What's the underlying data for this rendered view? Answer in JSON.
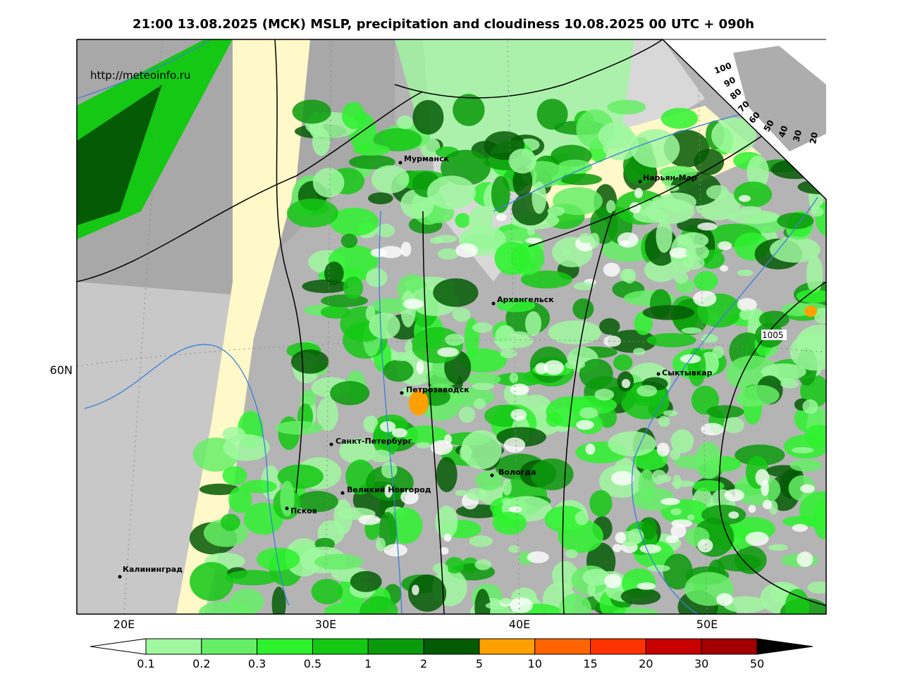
{
  "header": {
    "title": "21:00 13.08.2025 (МСК) MSLP, precipitation and cloudiness 10.08.2025 00 UTC + 090h"
  },
  "map": {
    "url": "http://meteoinfo.ru",
    "cities": [
      "Мурманск",
      "Нарьян-Мар",
      "Архангельск",
      "Сыктывкар",
      "Петрозаводск",
      "Санкт-Петербург",
      "Вологда",
      "Великий Новгород",
      "Псков",
      "Калининград"
    ],
    "isobar_label": "1005",
    "lon_labels": [
      "20E",
      "30E",
      "40E",
      "50E"
    ],
    "lat_labels": [
      "60N"
    ],
    "cloud_scale": [
      "100",
      "90",
      "80",
      "70",
      "60",
      "50",
      "40",
      "30",
      "20"
    ]
  },
  "colorbar": {
    "labels": [
      "0.1",
      "0.2",
      "0.3",
      "0.5",
      "1",
      "2",
      "5",
      "10",
      "15",
      "20",
      "30",
      "50"
    ],
    "colors": [
      "#a0f8a0",
      "#66ee66",
      "#2ef22e",
      "#14c814",
      "#0a9a0a",
      "#055a05",
      "#ff9f00",
      "#ff6400",
      "#ff3200",
      "#c80000",
      "#a00000"
    ]
  }
}
